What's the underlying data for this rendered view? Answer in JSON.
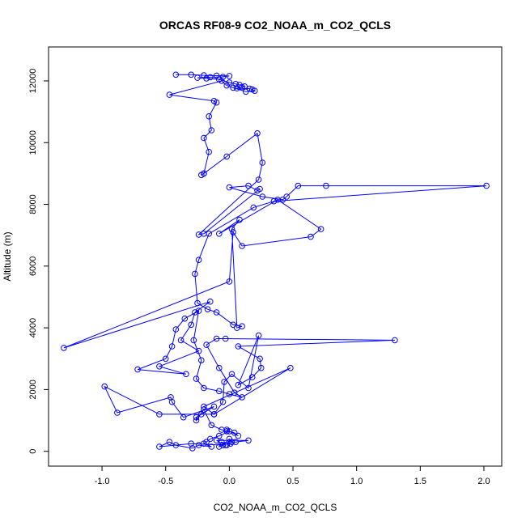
{
  "chart_data": {
    "type": "scatter",
    "title": "ORCAS RF08-9 CO2_NOAA_m_CO2_QCLS",
    "xlabel": "CO2_NOAA_m_CO2_QCLS",
    "ylabel": "Altitude (m)",
    "xlim": [
      -1.42,
      2.14
    ],
    "ylim": [
      -480,
      13100
    ],
    "xticks": [
      -1.0,
      -0.5,
      0.0,
      0.5,
      1.0,
      1.5,
      2.0
    ],
    "xtick_labels": [
      "-1.0",
      "-0.5",
      "0.0",
      "0.5",
      "1.0",
      "1.5",
      "2.0"
    ],
    "yticks": [
      0,
      2000,
      4000,
      6000,
      8000,
      10000,
      12000
    ],
    "ytick_labels": [
      "0",
      "2000",
      "4000",
      "6000",
      "8000",
      "10000",
      "12000"
    ],
    "series": [
      {
        "mode": "lines+markers",
        "color": "#0000ff",
        "x": [
          -0.42,
          -0.3,
          -0.2,
          -0.1,
          0.0,
          -0.05,
          -0.15,
          -0.25,
          -0.18,
          -0.08,
          0.0,
          0.05,
          0.08,
          0.12,
          0.1,
          0.06,
          0.16,
          0.18,
          0.2,
          0.13,
          0.03,
          -0.02,
          -0.06,
          -0.47,
          -0.12,
          -0.1,
          -0.16,
          -0.14,
          -0.2,
          -0.16,
          -0.2,
          -0.22,
          -0.2,
          -0.02,
          0.22,
          0.26,
          0.23,
          -0.24,
          -0.2,
          0.24,
          0.22,
          0.15,
          0.0,
          0.26,
          0.42,
          0.45,
          0.54,
          0.76,
          2.02,
          0.35,
          0.19,
          -0.16,
          -0.24,
          -0.27,
          -0.25,
          -0.17,
          -0.1,
          0.03,
          0.1,
          0.06,
          0.02,
          0.08,
          -0.08,
          0.38,
          0.72,
          0.64,
          0.1,
          0.03,
          0.0,
          -1.3,
          -0.15,
          -0.27,
          -0.3,
          -0.38,
          -0.24,
          -0.55,
          -0.34,
          -0.72,
          -0.5,
          -0.45,
          -0.42,
          -0.35,
          -0.24,
          -0.28,
          -0.22,
          -0.26,
          -0.2,
          -0.08,
          0.0,
          0.1,
          0.04,
          -0.08,
          -0.18,
          -0.1,
          -0.03,
          1.3,
          0.07,
          0.24,
          0.25,
          0.18,
          0.07,
          0.23,
          0.15,
          0.02,
          -0.04,
          -0.05,
          -0.12,
          0.48,
          -0.2,
          -0.12,
          -0.55,
          -0.98,
          -0.88,
          -0.46,
          -0.45,
          -0.36,
          -0.12,
          -0.22,
          -0.26,
          -0.26,
          -0.2,
          -0.14,
          -0.06,
          -0.02,
          0.04,
          0.07,
          -0.02,
          0.0,
          -0.08,
          -0.15,
          -0.18,
          -0.2,
          -0.14,
          -0.24,
          -0.29,
          -0.42,
          -0.47,
          -0.55,
          -0.3,
          -0.05,
          0.0,
          0.02,
          -0.08,
          -0.06,
          -0.03,
          -0.1,
          0.15,
          0.05,
          0.01,
          -0.02
        ],
        "y": [
          12200,
          12200,
          12180,
          12170,
          12160,
          12130,
          12120,
          12100,
          12080,
          12050,
          11950,
          11900,
          11870,
          11820,
          11800,
          11760,
          11750,
          11720,
          11680,
          11650,
          11780,
          11850,
          12000,
          11550,
          11350,
          11300,
          10850,
          10400,
          10150,
          9700,
          9000,
          8950,
          9000,
          9550,
          10300,
          9350,
          8800,
          7020,
          7050,
          8500,
          8450,
          8600,
          8550,
          8250,
          8150,
          8250,
          8600,
          8600,
          8600,
          8100,
          7900,
          7050,
          6200,
          5750,
          4800,
          4600,
          4500,
          4100,
          4050,
          4000,
          7200,
          7500,
          7050,
          8150,
          7200,
          6950,
          6650,
          7100,
          5500,
          3350,
          4850,
          4500,
          4100,
          3600,
          3250,
          2750,
          2500,
          2650,
          3000,
          3400,
          3950,
          4300,
          4550,
          3600,
          2950,
          2350,
          2050,
          1950,
          1850,
          1750,
          1900,
          2700,
          3450,
          3650,
          3650,
          3600,
          3400,
          3000,
          2700,
          2400,
          2150,
          3750,
          2050,
          2500,
          2250,
          1600,
          1200,
          2700,
          1450,
          1200,
          1200,
          2100,
          1250,
          1750,
          1600,
          1100,
          1450,
          1200,
          1100,
          1000,
          1350,
          850,
          700,
          650,
          600,
          500,
          700,
          650,
          500,
          400,
          300,
          250,
          150,
          200,
          100,
          200,
          300,
          150,
          250,
          200,
          400,
          300,
          150,
          300,
          200,
          350,
          350,
          300,
          250,
          200
        ]
      }
    ],
    "grid": false
  }
}
